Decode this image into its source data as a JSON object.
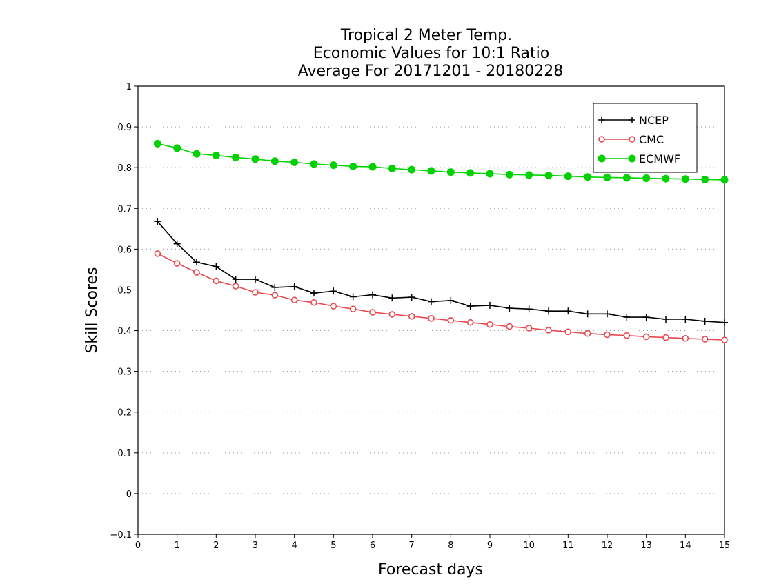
{
  "chart_data": {
    "type": "line",
    "title": [
      "Tropical 2 Meter Temp.",
      "Economic Values for 10:1 Ratio",
      "Average For 20171201 - 20180228"
    ],
    "xlabel": "Forecast days",
    "ylabel": "Skill Scores",
    "xlim": [
      0,
      15
    ],
    "ylim": [
      -0.1,
      1
    ],
    "xticks": [
      "0",
      "1",
      "2",
      "3",
      "4",
      "5",
      "6",
      "7",
      "8",
      "9",
      "10",
      "11",
      "12",
      "13",
      "14",
      "15"
    ],
    "yticks": [
      "−0.1",
      "0",
      "0.1",
      "0.2",
      "0.3",
      "0.4",
      "0.5",
      "0.6",
      "0.7",
      "0.8",
      "0.9",
      "1"
    ],
    "grid": true,
    "legend_position": "top-right",
    "x": [
      0.5,
      1,
      1.5,
      2,
      2.5,
      3,
      3.5,
      4,
      4.5,
      5,
      5.5,
      6,
      6.5,
      7,
      7.5,
      8,
      8.5,
      9,
      9.5,
      10,
      10.5,
      11,
      11.5,
      12,
      12.5,
      13,
      13.5,
      14,
      14.5,
      15
    ],
    "series": [
      {
        "name": "NCEP",
        "color": "#000000",
        "marker": "plus",
        "values": [
          0.668,
          0.613,
          0.568,
          0.557,
          0.526,
          0.526,
          0.506,
          0.508,
          0.492,
          0.497,
          0.483,
          0.488,
          0.48,
          0.482,
          0.471,
          0.474,
          0.46,
          0.462,
          0.455,
          0.453,
          0.448,
          0.448,
          0.441,
          0.441,
          0.433,
          0.433,
          0.428,
          0.428,
          0.423,
          0.42
        ]
      },
      {
        "name": "CMC",
        "color": "#e8484f",
        "marker": "open-circle",
        "values": [
          0.589,
          0.565,
          0.543,
          0.522,
          0.509,
          0.494,
          0.487,
          0.475,
          0.469,
          0.46,
          0.453,
          0.445,
          0.44,
          0.435,
          0.43,
          0.425,
          0.42,
          0.415,
          0.41,
          0.406,
          0.401,
          0.397,
          0.393,
          0.39,
          0.388,
          0.385,
          0.383,
          0.381,
          0.379,
          0.377
        ]
      },
      {
        "name": "ECMWF",
        "color": "#00d200",
        "marker": "filled-circle",
        "values": [
          0.859,
          0.848,
          0.834,
          0.83,
          0.825,
          0.821,
          0.816,
          0.813,
          0.809,
          0.806,
          0.803,
          0.802,
          0.798,
          0.795,
          0.792,
          0.789,
          0.787,
          0.785,
          0.783,
          0.782,
          0.781,
          0.779,
          0.777,
          0.776,
          0.775,
          0.774,
          0.773,
          0.772,
          0.771,
          0.77
        ]
      }
    ]
  }
}
